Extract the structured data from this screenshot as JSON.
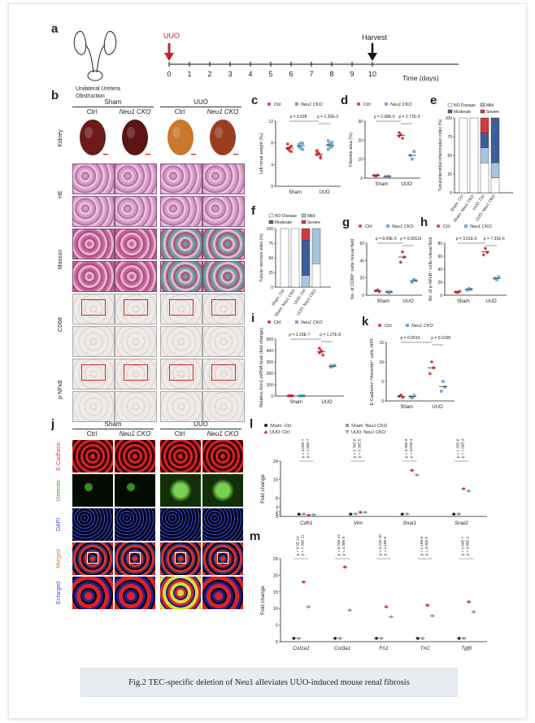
{
  "panel_a": {
    "label": "a",
    "kidney_caption": "Unilateral Uretera\nObstruction",
    "uuo": "UUO",
    "harvest": "Harvest",
    "axis_label": "Time (days)",
    "ticks": [
      "0",
      "1",
      "2",
      "3",
      "4",
      "5",
      "6",
      "7",
      "8",
      "9",
      "10"
    ]
  },
  "panel_b": {
    "label": "b",
    "groups": [
      "Sham",
      "UUO"
    ],
    "cols": [
      "Ctrl",
      "Neu1 CKO",
      "Ctrl",
      "Neu1 CKO"
    ],
    "rows": [
      "Kidney",
      "HE",
      "Masson",
      "CD68",
      "p-NFκB"
    ]
  },
  "panel_c": {
    "label": "c",
    "legend": [
      "Ctrl",
      "Neu1 CKO"
    ],
    "ylabel": "Left renal weight (‰)",
    "pvals": [
      "p = 0.038",
      "p = 2.20E-3"
    ],
    "xcats": [
      "Sham",
      "UUO"
    ]
  },
  "panel_d": {
    "label": "d",
    "legend": [
      "Ctrl",
      "Neu1 CKO"
    ],
    "ylabel": "Fibrosis area (%)",
    "pvals": [
      "p = 2.08E-5",
      "p = 2.77E-3"
    ],
    "xcats": [
      "Sham",
      "UUO"
    ]
  },
  "panel_e": {
    "label": "e",
    "legend": [
      "NO Disease",
      "Mild",
      "Moderate",
      "Severe"
    ],
    "ylabel": "Tubulointerstitial inflammation index (%)",
    "xcats": [
      "Sham: Ctrl",
      "Sham: Neu1 CKO",
      "UUO: Ctrl",
      "UUO: Neu1 CKO"
    ]
  },
  "panel_f": {
    "label": "f",
    "legend": [
      "NO Disease",
      "Mild",
      "Moderate",
      "Severe"
    ],
    "ylabel": "Tubular necrosis index (%)",
    "xcats": [
      "Sham: Ctrl",
      "Sham: Neu1 CKO",
      "UUO: Ctrl",
      "UUO: Neu1 CKO"
    ]
  },
  "panel_g": {
    "label": "g",
    "legend": [
      "Ctrl",
      "Neu1 CKO"
    ],
    "ylabel": "No. of CD68⁺ cells /visual field",
    "pvals": [
      "p = 8.09E-5",
      "p = 0.00116"
    ],
    "xcats": [
      "Sham",
      "UUO"
    ]
  },
  "panel_h": {
    "label": "h",
    "legend": [
      "Ctrl",
      "Neu1 CKO"
    ],
    "ylabel": "No. of p-NFκB⁺ cells /visual field",
    "pvals": [
      "p = 3.01E-6",
      "p = 7.31E-6"
    ],
    "xcats": [
      "Sham",
      "UUO"
    ]
  },
  "panel_i": {
    "label": "i",
    "legend": [
      "Ctrl",
      "Neu1 CKO"
    ],
    "ylabel": "Relative Kim1 mRNA level (fold change)",
    "pvals": [
      "p = 2.29E-7",
      "p = 1.27E-8"
    ],
    "xcats": [
      "Sham",
      "UUO"
    ]
  },
  "panel_k": {
    "label": "k",
    "legend": [
      "Ctrl",
      "Neu1 CKO"
    ],
    "ylabel": "E-Cadherin⁺/Vimentin⁺ cells /HPF",
    "pvals": [
      "p = 0.0014",
      "p = 0.0158"
    ],
    "xcats": [
      "Sham",
      "UUO"
    ]
  },
  "panel_j": {
    "label": "j",
    "groups": [
      "Sham",
      "UUO"
    ],
    "cols": [
      "Ctrl",
      "Neu1 CKO",
      "Ctrl",
      "Neu1 CKO"
    ],
    "rows": [
      "E-Cadherin",
      "Vimentin",
      "DAPI",
      "Merged",
      "Enlarged"
    ]
  },
  "panel_l": {
    "label": "l",
    "legend": [
      "Sham: Ctrl",
      "Sham: Neu1 CKO",
      "UUO: Ctrl",
      "UUO: Neu1 CKO"
    ],
    "ylabel": "Fold change",
    "genes": [
      "Cdh1",
      "Vim",
      "Snai1",
      "Snai2"
    ],
    "pvals": [
      "p = 4.03E-7",
      "p = 1.59E-7",
      "p = 3.76E-6",
      "p = 5.39E-5",
      "p = 3.35E-9",
      "p = 6.07E-4",
      "p = 1.32E-6",
      "p = 1.69E-4"
    ]
  },
  "panel_m": {
    "label": "m",
    "ylabel": "Fold change",
    "genes": [
      "Col1a1",
      "Col3a1",
      "Fn1",
      "TnC",
      "Tgfβ"
    ],
    "pvals": [
      "p = 5.5E-14",
      "p = 7.39E-11",
      "p = 6.24E-12",
      "p = 3.30E-9",
      "p = 5.21E-10",
      "p = 2.10E-6",
      "p = 1.16E-6",
      "p = 3.32E-5",
      "p = 1.04E-7",
      "p = 4.89E-3"
    ]
  },
  "caption": "Fig.2 TEC-specific deletion of Neu1 alleviates UUO-induced mouse renal fibrosis",
  "colors": {
    "ctrl": "#e0393e",
    "cko": "#6fa8d6",
    "no": "#ffffff",
    "mild": "#a8c4e0",
    "moderate": "#3c5f9a",
    "severe": "#d33a3a"
  }
}
